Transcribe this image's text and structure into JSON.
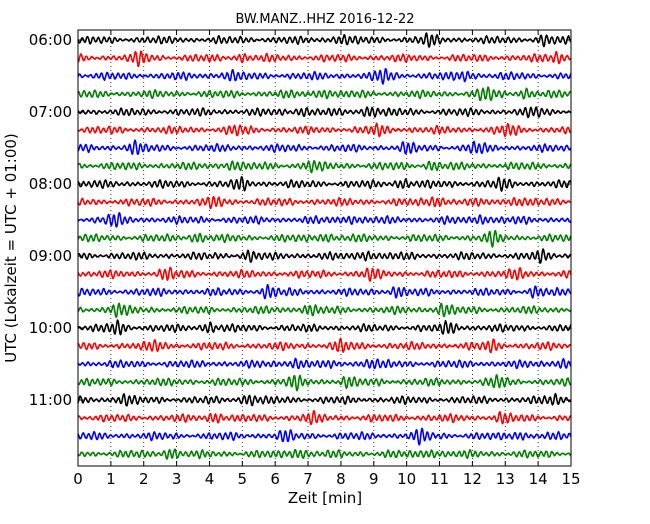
{
  "chart_data": {
    "type": "line",
    "title": "BW.MANZ..HHZ 2016-12-22",
    "xlabel": "Zeit  [min]",
    "ylabel": "UTC (Lokalzeit = UTC + 01:00)",
    "xlim": [
      0,
      15
    ],
    "x_ticks": [
      "0",
      "1",
      "2",
      "3",
      "4",
      "5",
      "6",
      "7",
      "8",
      "9",
      "10",
      "11",
      "12",
      "13",
      "14",
      "15"
    ],
    "hour_labels": [
      "06:00",
      "07:00",
      "08:00",
      "09:00",
      "10:00",
      "11:00"
    ],
    "rows_per_hour": 4,
    "trace_colors": [
      "#000000",
      "#ff0000",
      "#0000ff",
      "#008000"
    ],
    "vertical_grid": "dotted",
    "traces": [
      {
        "start": "06:00",
        "bursts": [
          [
            8.0,
            0.7
          ],
          [
            10.7,
            0.8
          ],
          [
            14.2,
            0.7
          ]
        ]
      },
      {
        "start": "06:15",
        "bursts": [
          [
            1.9,
            1.0
          ],
          [
            5.0,
            0.5
          ],
          [
            14.6,
            0.8
          ]
        ]
      },
      {
        "start": "06:30",
        "bursts": [
          [
            4.6,
            0.7
          ],
          [
            9.3,
            1.0
          ],
          [
            11.8,
            0.8
          ]
        ]
      },
      {
        "start": "06:45",
        "bursts": [
          [
            7.5,
            0.8
          ],
          [
            12.4,
            1.0
          ],
          [
            13.6,
            0.7
          ]
        ]
      },
      {
        "start": "07:00",
        "bursts": [
          [
            6.8,
            0.7
          ],
          [
            8.9,
            1.0
          ],
          [
            13.9,
            0.6
          ]
        ]
      },
      {
        "start": "07:15",
        "bursts": [
          [
            4.8,
            0.6
          ],
          [
            9.1,
            0.7
          ],
          [
            13.1,
            0.8
          ]
        ]
      },
      {
        "start": "07:30",
        "bursts": [
          [
            1.7,
            1.0
          ],
          [
            10.0,
            0.7
          ],
          [
            12.1,
            0.8
          ]
        ]
      },
      {
        "start": "07:45",
        "bursts": [
          [
            4.7,
            0.8
          ],
          [
            7.1,
            0.8
          ],
          [
            10.8,
            0.7
          ]
        ]
      },
      {
        "start": "08:00",
        "bursts": [
          [
            5.0,
            0.8
          ],
          [
            9.9,
            0.7
          ],
          [
            12.9,
            0.7
          ]
        ]
      },
      {
        "start": "08:15",
        "bursts": [
          [
            4.2,
            0.7
          ],
          [
            10.9,
            1.0
          ],
          [
            13.3,
            0.7
          ]
        ]
      },
      {
        "start": "08:30",
        "bursts": [
          [
            1.1,
            1.0
          ],
          [
            8.3,
            0.7
          ],
          [
            12.3,
            0.8
          ]
        ]
      },
      {
        "start": "08:45",
        "bursts": [
          [
            3.6,
            0.7
          ],
          [
            7.5,
            0.7
          ],
          [
            12.6,
            1.0
          ]
        ]
      },
      {
        "start": "09:00",
        "bursts": [
          [
            5.2,
            0.7
          ],
          [
            8.8,
            0.8
          ],
          [
            14.1,
            0.7
          ]
        ]
      },
      {
        "start": "09:15",
        "bursts": [
          [
            2.7,
            0.8
          ],
          [
            8.9,
            0.8
          ],
          [
            13.4,
            0.7
          ]
        ]
      },
      {
        "start": "09:30",
        "bursts": [
          [
            5.8,
            1.0
          ],
          [
            9.7,
            0.8
          ],
          [
            13.9,
            0.7
          ]
        ]
      },
      {
        "start": "09:45",
        "bursts": [
          [
            1.2,
            1.0
          ],
          [
            7.0,
            0.8
          ],
          [
            11.1,
            1.0
          ]
        ]
      },
      {
        "start": "10:00",
        "bursts": [
          [
            1.2,
            1.0
          ],
          [
            4.0,
            0.8
          ],
          [
            11.3,
            0.9
          ]
        ]
      },
      {
        "start": "10:15",
        "bursts": [
          [
            2.4,
            0.7
          ],
          [
            8.0,
            0.8
          ],
          [
            12.6,
            0.8
          ]
        ]
      },
      {
        "start": "10:30",
        "bursts": [
          [
            6.6,
            0.8
          ],
          [
            8.9,
            0.7
          ],
          [
            14.7,
            0.8
          ]
        ]
      },
      {
        "start": "10:45",
        "bursts": [
          [
            6.6,
            1.0
          ],
          [
            8.2,
            0.8
          ],
          [
            12.8,
            0.8
          ]
        ]
      },
      {
        "start": "11:00",
        "bursts": [
          [
            1.4,
            0.8
          ],
          [
            5.2,
            1.0
          ],
          [
            14.5,
            0.7
          ]
        ]
      },
      {
        "start": "11:15",
        "bursts": [
          [
            4.2,
            0.9
          ],
          [
            7.1,
            0.7
          ],
          [
            12.9,
            0.7
          ]
        ]
      },
      {
        "start": "11:30",
        "bursts": [
          [
            6.3,
            0.7
          ],
          [
            10.4,
            1.0
          ],
          [
            13.4,
            0.6
          ]
        ]
      },
      {
        "start": "11:45",
        "bursts": [
          [
            2.8,
            0.9
          ],
          [
            6.7,
            0.9
          ],
          [
            10.7,
            0.7
          ]
        ]
      }
    ]
  }
}
